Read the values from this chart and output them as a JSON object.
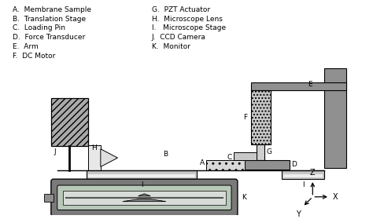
{
  "legend_left": [
    "A.  Membrane Sample",
    "B.  Translation Stage",
    "C.  Loading Pin",
    "D.  Force Transducer",
    "E.  Arm",
    "F.  DC Motor"
  ],
  "legend_right": [
    "G.  PZT Actuator",
    "H.  Microscope Lens",
    "I.   Microscope Stage",
    "J.  CCD Camera",
    "K.  Monitor"
  ],
  "bg_color": "#ffffff",
  "text_color": "#000000",
  "gray_light": "#c8c8c8",
  "gray_medium": "#909090",
  "gray_dark": "#505050",
  "gray_stage": "#b0b0b0"
}
